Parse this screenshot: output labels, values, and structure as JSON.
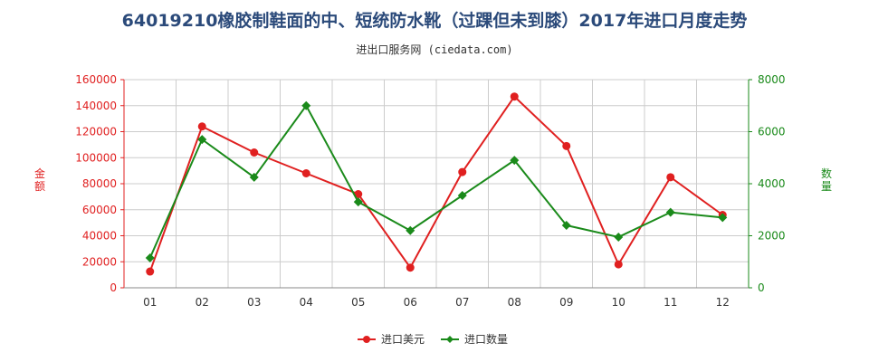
{
  "title": "64019210橡胶制鞋面的中、短统防水靴（过踝但未到膝）2017年进口月度走势",
  "subtitle": "进出口服务网 (ciedata.com)",
  "chart_data": {
    "type": "line",
    "title": "64019210橡胶制鞋面的中、短统防水靴（过踝但未到膝）2017年进口月度走势",
    "categories": [
      "01",
      "02",
      "03",
      "04",
      "05",
      "06",
      "07",
      "08",
      "09",
      "10",
      "11",
      "12"
    ],
    "y_left": {
      "label": "金额",
      "ylim": [
        0,
        160000
      ],
      "ticks": [
        0,
        20000,
        40000,
        60000,
        80000,
        100000,
        120000,
        140000,
        160000
      ],
      "color": "#e02020"
    },
    "y_right": {
      "label": "数量",
      "ylim": [
        0,
        8000
      ],
      "ticks": [
        0,
        2000,
        4000,
        6000,
        8000
      ],
      "color": "#1a8a1a"
    },
    "series": [
      {
        "name": "进口美元",
        "axis": "left",
        "color": "#e02020",
        "values": [
          12500,
          124000,
          104000,
          88000,
          72000,
          15500,
          89000,
          147000,
          109000,
          18000,
          85000,
          56000
        ]
      },
      {
        "name": "进口数量",
        "axis": "right",
        "color": "#1a8a1a",
        "values": [
          1150,
          5700,
          4250,
          7000,
          3300,
          2200,
          3550,
          4900,
          2400,
          1950,
          2900,
          2700
        ]
      }
    ],
    "grid": true,
    "legend_position": "bottom-center"
  }
}
